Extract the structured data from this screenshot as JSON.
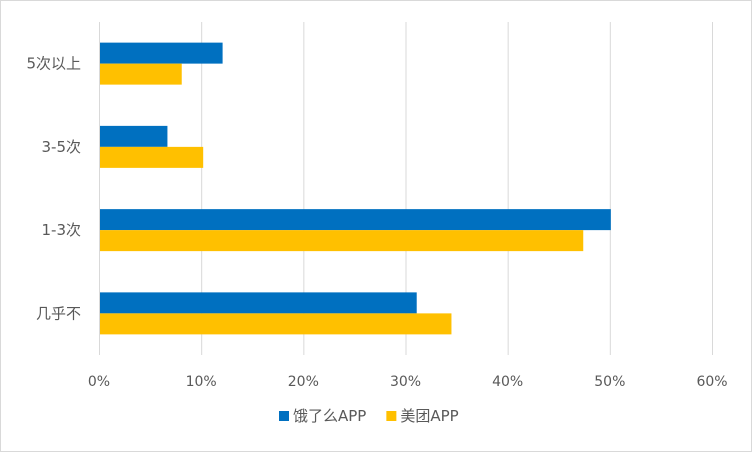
{
  "chart_data": {
    "type": "bar",
    "orientation": "horizontal",
    "categories": [
      "5次以上",
      "3-5次",
      "1-3次",
      "几乎不"
    ],
    "series": [
      {
        "name": "饿了么APP",
        "values": [
          12,
          6.6,
          50,
          31
        ],
        "color": "#0070c0"
      },
      {
        "name": "美团APP",
        "values": [
          8,
          10.1,
          47.3,
          34.4
        ],
        "color": "#ffc000"
      }
    ],
    "xlim": [
      0,
      60
    ],
    "x_ticks": [
      "0%",
      "10%",
      "20%",
      "30%",
      "40%",
      "50%",
      "60%"
    ],
    "x_tick_values": [
      0,
      10,
      20,
      30,
      40,
      50,
      60
    ],
    "grid": true,
    "legend_position": "bottom",
    "title": "",
    "xlabel": "",
    "ylabel": ""
  },
  "colors": {
    "grid": "#d9d9d9",
    "text": "#595959"
  }
}
